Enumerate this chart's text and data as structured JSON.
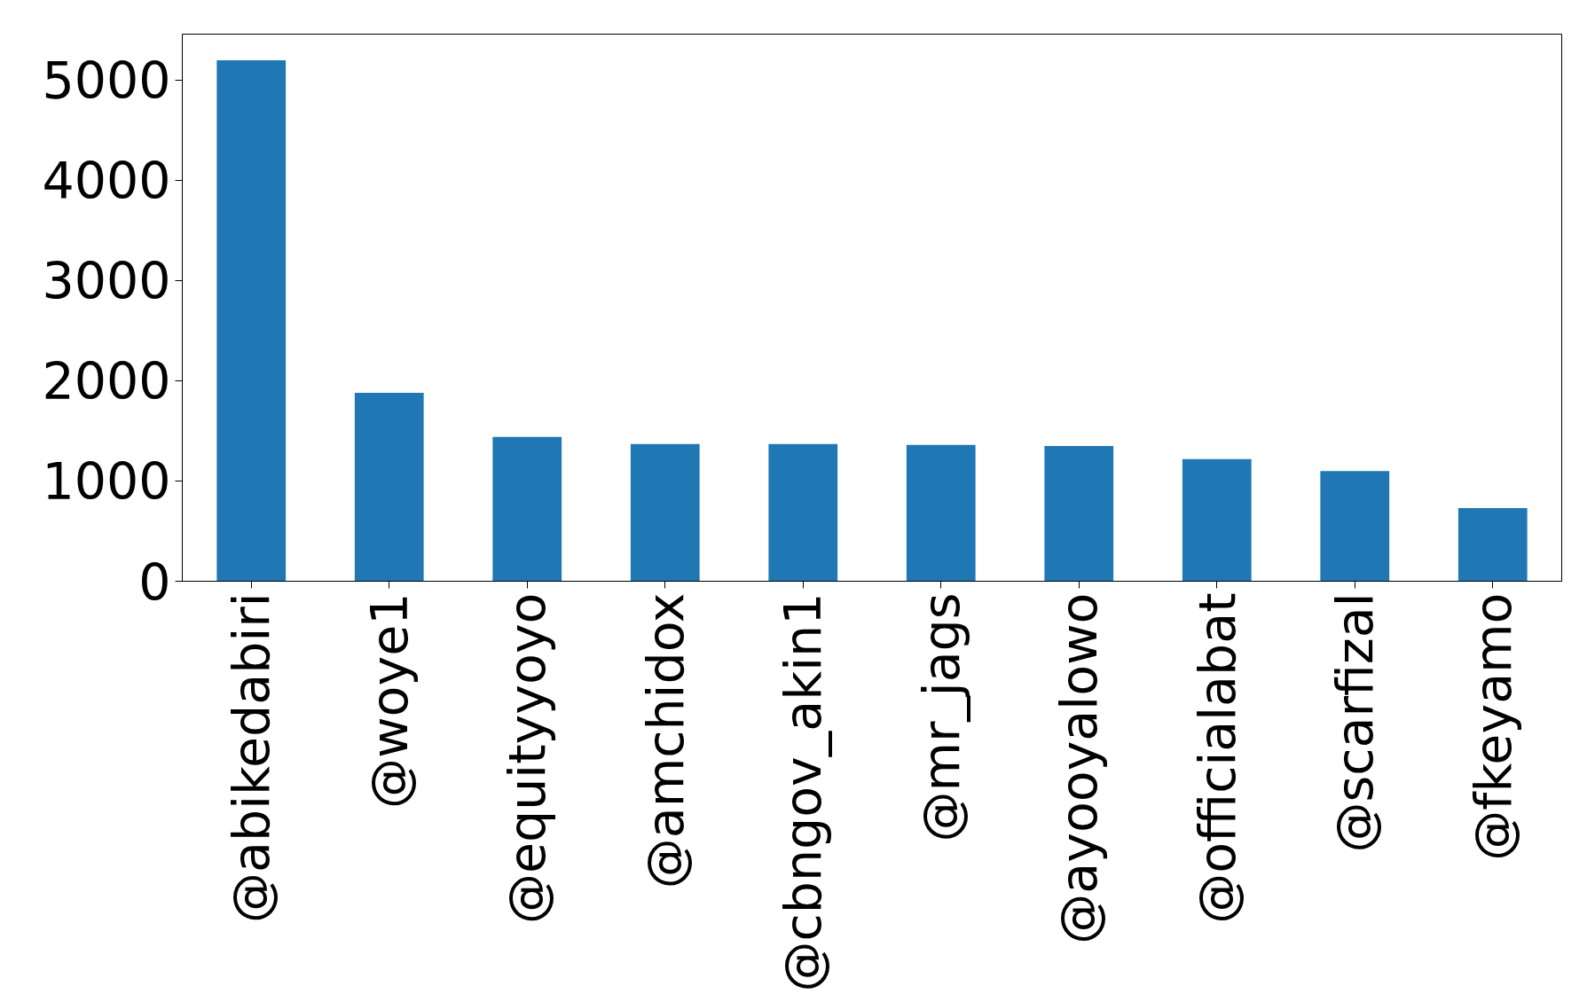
{
  "chart_data": {
    "type": "bar",
    "categories": [
      "@abikedabiri",
      "@woye1",
      "@equityyoyo",
      "@amchidox",
      "@cbngov_akin1",
      "@mr_jags",
      "@ayooyalowo",
      "@officialabat",
      "@scarfizal",
      "@fkeyamo"
    ],
    "values": [
      5200,
      1880,
      1440,
      1370,
      1370,
      1360,
      1350,
      1220,
      1100,
      730
    ],
    "color": "#1f77b4",
    "ylim": [
      0,
      5460
    ],
    "yticks": [
      0,
      1000,
      2000,
      3000,
      4000,
      5000
    ],
    "grid": false
  }
}
